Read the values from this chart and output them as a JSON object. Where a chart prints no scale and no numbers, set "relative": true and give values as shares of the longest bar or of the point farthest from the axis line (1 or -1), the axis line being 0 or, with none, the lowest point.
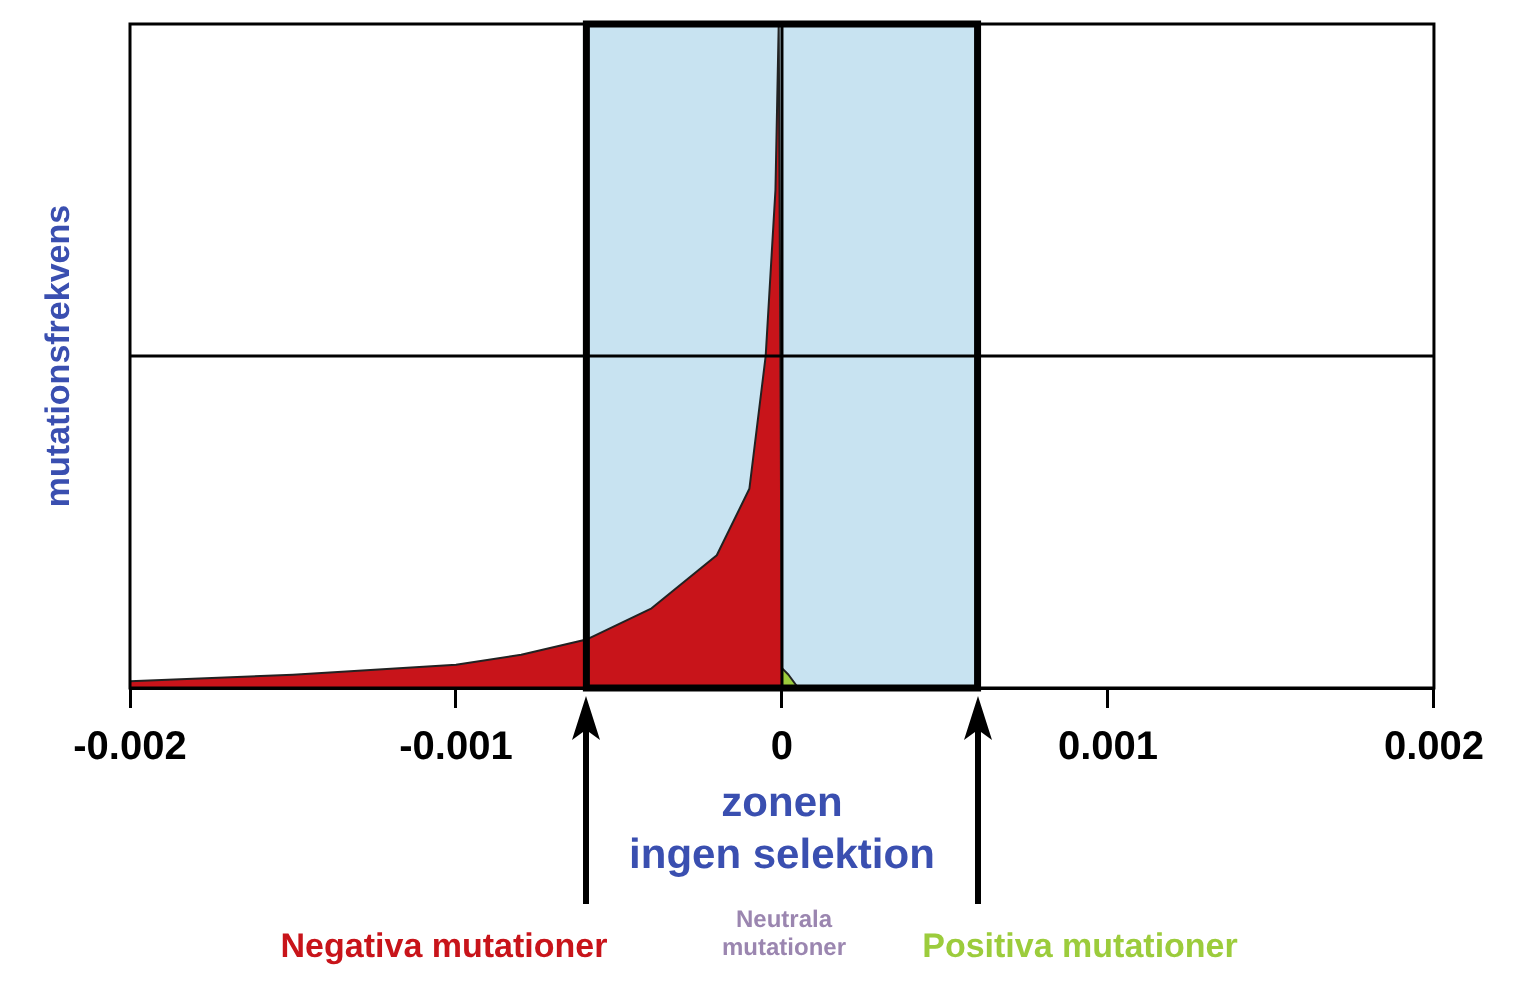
{
  "chart_data": {
    "type": "area",
    "ylabel": "mutationsfrekvens",
    "relative": true,
    "xlim": [
      -0.002,
      0.002
    ],
    "xticks": [
      -0.002,
      -0.001,
      0,
      0.001,
      0.002
    ],
    "series": [
      {
        "name": "Negativa mutationer",
        "color": "#c8141a",
        "x": [
          -0.002,
          -0.0015,
          -0.001,
          -0.0008,
          -0.0006,
          -0.0004,
          -0.0002,
          -0.0001,
          -5e-05,
          -2e-05,
          -1e-05,
          0
        ],
        "values": [
          0.01,
          0.02,
          0.035,
          0.05,
          0.073,
          0.12,
          0.2,
          0.3,
          0.5,
          0.75,
          1,
          0
        ]
      },
      {
        "name": "Positiva mutationer",
        "color": "#9ccc3c",
        "x": [
          0,
          2e-05,
          5e-05
        ],
        "values": [
          0.03,
          0.02,
          0
        ]
      }
    ],
    "bands": [
      {
        "axis": "x",
        "from": -0.0006,
        "to": 0.0006,
        "label": "zonen ingen selektion",
        "color": "#c8e3f1"
      }
    ],
    "ref_lines": [
      {
        "axis": "x",
        "value": 0,
        "color": "#000000"
      },
      {
        "axis": "y",
        "value": 0.5,
        "color": "#000000"
      }
    ],
    "annotations": [
      "Neutrala mutationer"
    ],
    "legend": "bottom"
  }
}
